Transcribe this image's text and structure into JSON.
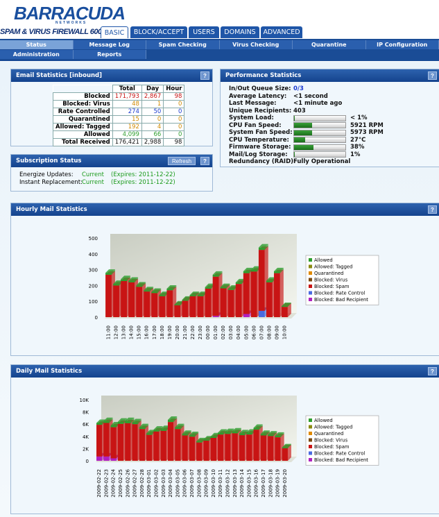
{
  "header": {
    "brand": "BARRACUDA",
    "brand_sub": "NETWORKS",
    "product": "SPAM & VIRUS FIREWALL 600"
  },
  "tabs": [
    "BASIC",
    "BLOCK/ACCEPT",
    "USERS",
    "DOMAINS",
    "ADVANCED"
  ],
  "subnav": [
    "Status",
    "Message Log",
    "Spam Checking",
    "Virus Checking",
    "Quarantine",
    "IP Configuration",
    "Administration",
    "Reports"
  ],
  "help": "?",
  "email_stats": {
    "title": "Email Statistics [inbound]",
    "columns": [
      "Total",
      "Day",
      "Hour"
    ],
    "rows": [
      [
        "Blocked",
        "171,793",
        "2,867",
        "98"
      ],
      [
        "Blocked: Virus",
        "48",
        "1",
        "0"
      ],
      [
        "Rate Controlled",
        "274",
        "50",
        "0"
      ],
      [
        "Quarantined",
        "15",
        "0",
        "0"
      ],
      [
        "Allowed: Tagged",
        "192",
        "4",
        "0"
      ],
      [
        "Allowed",
        "4,099",
        "66",
        "0"
      ],
      [
        "Total Received",
        "176,421",
        "2,988",
        "98"
      ]
    ]
  },
  "subscription": {
    "title": "Subscription Status",
    "refresh": "Refresh",
    "rows": [
      [
        "Energize Updates:",
        "Current",
        "(Expires: 2011-12-22)"
      ],
      [
        "Instant Replacement:",
        "Current",
        "(Expires: 2011-12-22)"
      ]
    ]
  },
  "performance": {
    "title": "Performance Statistics",
    "items": [
      {
        "label": "In/Out Queue Size:",
        "value": "0/3"
      },
      {
        "label": "Average Latency:",
        "value": "<1 second"
      },
      {
        "label": "Last Message:",
        "value": "<1 minute ago"
      },
      {
        "label": "Unique Recipients:",
        "value": "403"
      },
      {
        "label": "System Load:",
        "value": "< 1%",
        "gauge": 1
      },
      {
        "label": "CPU Fan Speed:",
        "value": "5921 RPM",
        "gauge": 35
      },
      {
        "label": "System Fan Speed:",
        "value": "5973 RPM",
        "gauge": 35
      },
      {
        "label": "CPU Temperature:",
        "value": "27°C",
        "gauge": 22
      },
      {
        "label": "Firmware Storage:",
        "value": "38%",
        "gauge": 38
      },
      {
        "label": "Mail/Log Storage:",
        "value": "1%",
        "gauge": 1
      },
      {
        "label": "Redundancy (RAID):",
        "value": "Fully Operational"
      }
    ]
  },
  "hourly": {
    "title": "Hourly Mail Statistics",
    "chart_data": {
      "type": "bar",
      "stacked": true,
      "categories": [
        "11:00",
        "12:00",
        "13:00",
        "14:00",
        "15:00",
        "16:00",
        "17:00",
        "18:00",
        "19:00",
        "20:00",
        "21:00",
        "22:00",
        "23:00",
        "00:00",
        "01:00",
        "02:00",
        "03:00",
        "04:00",
        "05:00",
        "06:00",
        "07:00",
        "08:00",
        "09:00",
        "10:00"
      ],
      "ylim": [
        0,
        500
      ],
      "yticks": [
        0,
        100,
        200,
        300,
        400,
        500
      ],
      "series": [
        {
          "name": "Allowed",
          "color": "#2e9e2e",
          "values": [
            12,
            10,
            12,
            10,
            8,
            8,
            8,
            8,
            10,
            5,
            6,
            8,
            8,
            10,
            12,
            8,
            8,
            10,
            12,
            12,
            15,
            10,
            12,
            5
          ]
        },
        {
          "name": "Allowed: Tagged",
          "color": "#8a8a10",
          "values": [
            0,
            0,
            0,
            0,
            0,
            0,
            0,
            0,
            0,
            0,
            0,
            0,
            0,
            0,
            0,
            0,
            0,
            0,
            0,
            0,
            0,
            0,
            0,
            0
          ]
        },
        {
          "name": "Quarantined",
          "color": "#e08a00",
          "values": [
            0,
            0,
            0,
            0,
            0,
            0,
            0,
            0,
            0,
            0,
            0,
            0,
            0,
            0,
            0,
            0,
            0,
            0,
            0,
            0,
            0,
            0,
            0,
            0
          ]
        },
        {
          "name": "Blocked: Virus",
          "color": "#7a4a10",
          "values": [
            0,
            0,
            0,
            0,
            0,
            0,
            0,
            0,
            0,
            0,
            0,
            0,
            0,
            0,
            0,
            0,
            0,
            0,
            0,
            0,
            0,
            0,
            0,
            0
          ]
        },
        {
          "name": "Blocked: Spam",
          "color": "#c81414",
          "values": [
            268,
            200,
            228,
            220,
            192,
            162,
            152,
            132,
            170,
            75,
            104,
            132,
            132,
            180,
            248,
            182,
            172,
            210,
            258,
            288,
            385,
            220,
            278,
            65
          ]
        },
        {
          "name": "Blocked: Rate Control",
          "color": "#4a6ae0",
          "values": [
            0,
            0,
            0,
            0,
            0,
            0,
            0,
            0,
            0,
            0,
            0,
            0,
            0,
            0,
            0,
            0,
            0,
            0,
            0,
            0,
            40,
            0,
            0,
            0
          ]
        },
        {
          "name": "Blocked: Bad Recipient",
          "color": "#b020c0",
          "values": [
            0,
            0,
            0,
            0,
            0,
            0,
            0,
            0,
            0,
            0,
            0,
            0,
            0,
            0,
            8,
            0,
            0,
            0,
            20,
            0,
            0,
            0,
            0,
            0
          ]
        }
      ]
    }
  },
  "daily": {
    "title": "Daily Mail Statistics",
    "chart_data": {
      "type": "bar",
      "stacked": true,
      "categories": [
        "2009-02-22",
        "2009-02-23",
        "2009-02-24",
        "2009-02-25",
        "2009-02-26",
        "2009-02-27",
        "2009-02-28",
        "2009-03-01",
        "2009-03-02",
        "2009-03-03",
        "2009-03-04",
        "2009-03-05",
        "2009-03-06",
        "2009-03-07",
        "2009-03-08",
        "2009-03-09",
        "2009-03-10",
        "2009-03-11",
        "2009-03-12",
        "2009-03-13",
        "2009-03-14",
        "2009-03-15",
        "2009-03-16",
        "2009-03-17",
        "2009-03-18",
        "2009-03-19",
        "2009-03-20"
      ],
      "ylim": [
        0,
        10000
      ],
      "yticks": [
        0,
        {
          "value": 2000,
          "label": "2K"
        },
        {
          "value": 4000,
          "label": "4K"
        },
        {
          "value": 6000,
          "label": "6K"
        },
        {
          "value": 8000,
          "label": "8K"
        },
        {
          "value": 10000,
          "label": "10K"
        }
      ],
      "series": [
        {
          "name": "Allowed",
          "color": "#2e9e2e",
          "values": [
            300,
            300,
            300,
            350,
            350,
            300,
            300,
            250,
            300,
            300,
            350,
            300,
            250,
            250,
            200,
            200,
            250,
            300,
            300,
            300,
            300,
            300,
            300,
            250,
            250,
            250,
            150
          ]
        },
        {
          "name": "Allowed: Tagged",
          "color": "#8a8a10",
          "values": [
            0,
            0,
            0,
            0,
            0,
            0,
            0,
            0,
            0,
            0,
            0,
            0,
            0,
            0,
            0,
            0,
            0,
            0,
            0,
            0,
            0,
            0,
            0,
            0,
            0,
            0,
            0
          ]
        },
        {
          "name": "Quarantined",
          "color": "#e08a00",
          "values": [
            0,
            0,
            0,
            0,
            0,
            0,
            0,
            0,
            0,
            0,
            0,
            0,
            0,
            0,
            0,
            0,
            0,
            0,
            0,
            0,
            0,
            0,
            0,
            0,
            0,
            0,
            0
          ]
        },
        {
          "name": "Blocked: Virus",
          "color": "#7a4a10",
          "values": [
            0,
            0,
            0,
            0,
            0,
            0,
            0,
            0,
            0,
            0,
            0,
            0,
            0,
            0,
            0,
            0,
            0,
            0,
            0,
            0,
            0,
            0,
            0,
            0,
            0,
            0,
            0
          ]
        },
        {
          "name": "Blocked: Spam",
          "color": "#c81414",
          "values": [
            5200,
            5500,
            5100,
            6050,
            6150,
            6000,
            5200,
            4250,
            4800,
            4900,
            6350,
            5200,
            4150,
            3950,
            3000,
            3300,
            3750,
            4300,
            4400,
            4500,
            4200,
            4300,
            5100,
            4150,
            4050,
            3850,
            2050
          ]
        },
        {
          "name": "Blocked: Rate Control",
          "color": "#4a6ae0",
          "values": [
            0,
            0,
            0,
            0,
            0,
            0,
            0,
            0,
            0,
            0,
            0,
            0,
            0,
            0,
            0,
            0,
            0,
            0,
            0,
            0,
            0,
            0,
            0,
            0,
            0,
            0,
            0
          ]
        },
        {
          "name": "Blocked: Bad Recipient",
          "color": "#b020c0",
          "values": [
            700,
            700,
            400,
            0,
            0,
            0,
            0,
            0,
            0,
            0,
            0,
            0,
            0,
            0,
            0,
            0,
            0,
            0,
            0,
            0,
            0,
            0,
            0,
            0,
            0,
            0,
            0
          ]
        }
      ]
    }
  }
}
